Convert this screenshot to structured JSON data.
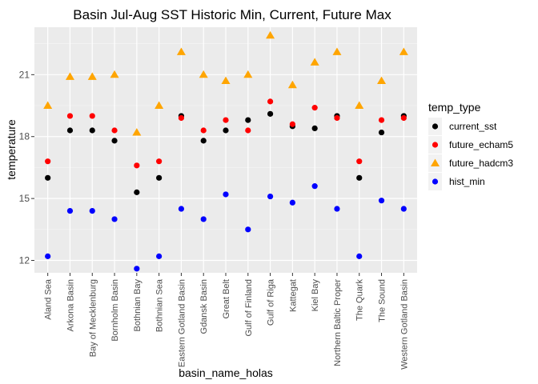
{
  "chart_data": {
    "type": "scatter",
    "title": "Basin Jul-Aug SST Historic Min, Current, Future Max",
    "xlabel": "basin_name_holas",
    "ylabel": "temperature",
    "ylim": [
      11.4,
      23.3
    ],
    "yticks": [
      12,
      15,
      18,
      21
    ],
    "categories": [
      "Aland Sea",
      "Arkona Basin",
      "Bay of Mecklenburg",
      "Bornholm Basin",
      "Bothnian Bay",
      "Bothnian Sea",
      "Eastern Gotland Basin",
      "Gdansk Basin",
      "Great Belt",
      "Gulf of Finland",
      "Gulf of Riga",
      "Kattegat",
      "Kiel Bay",
      "Northern Baltic Proper",
      "The Quark",
      "The Sound",
      "Western Gotland Basin"
    ],
    "legend": {
      "title": "temp_type",
      "position": "right"
    },
    "grid": true,
    "series": [
      {
        "name": "current_sst",
        "color": "#000000",
        "shape": "circle",
        "values": [
          16.0,
          18.3,
          18.3,
          17.8,
          15.3,
          16.0,
          19.0,
          17.8,
          18.3,
          18.8,
          19.1,
          18.5,
          18.4,
          19.0,
          16.0,
          18.2,
          19.0
        ]
      },
      {
        "name": "future_echam5",
        "color": "#ff0000",
        "shape": "circle",
        "values": [
          16.8,
          19.0,
          19.0,
          18.3,
          16.6,
          16.8,
          18.9,
          18.3,
          18.8,
          18.3,
          19.7,
          18.6,
          19.4,
          18.9,
          16.8,
          18.8,
          18.9
        ]
      },
      {
        "name": "future_hadcm3",
        "color": "#ffa500",
        "shape": "triangle",
        "values": [
          19.5,
          20.9,
          20.9,
          21.0,
          18.2,
          19.5,
          22.1,
          21.0,
          20.7,
          21.0,
          22.9,
          20.5,
          21.6,
          22.1,
          19.5,
          20.7,
          22.1
        ]
      },
      {
        "name": "hist_min",
        "color": "#0000ff",
        "shape": "circle",
        "values": [
          12.2,
          14.4,
          14.4,
          14.0,
          11.6,
          12.2,
          14.5,
          14.0,
          15.2,
          13.5,
          15.1,
          14.8,
          15.6,
          14.5,
          12.2,
          14.9,
          14.5
        ]
      }
    ]
  }
}
